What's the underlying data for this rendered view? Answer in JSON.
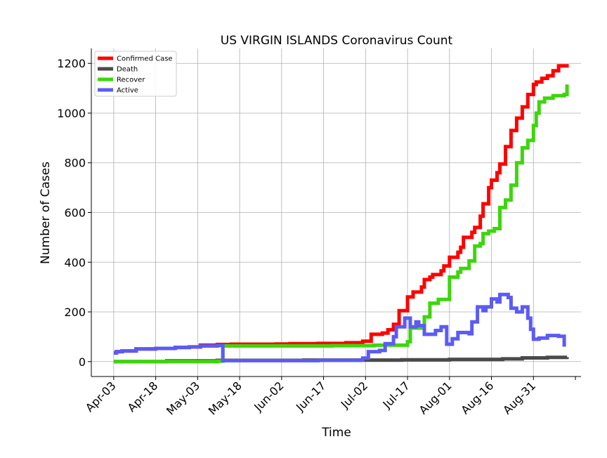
{
  "chart_data": {
    "type": "line",
    "title": "US VIRGIN ISLANDS Coronavirus Count",
    "xlabel": "Time",
    "ylabel": "Number of Cases",
    "x_ticks": [
      "Apr-03",
      "Apr-18",
      "May-03",
      "May-18",
      "Jun-02",
      "Jun-17",
      "Jul-02",
      "Jul-17",
      "Aug-01",
      "Aug-16",
      "Aug-31"
    ],
    "y_ticks": [
      0,
      200,
      400,
      600,
      800,
      1000,
      1200
    ],
    "ylim": [
      -60,
      1260
    ],
    "xlim": [
      "2020-03-26",
      "2020-09-17"
    ],
    "grid": true,
    "legend_position": "top-left",
    "series": [
      {
        "name": "Confirmed Case",
        "color": "#ff0000",
        "points": [
          [
            "2020-04-03",
            35
          ],
          [
            "2020-04-04",
            40
          ],
          [
            "2020-04-06",
            43
          ],
          [
            "2020-04-11",
            51
          ],
          [
            "2020-04-18",
            53
          ],
          [
            "2020-04-25",
            57
          ],
          [
            "2020-04-30",
            59
          ],
          [
            "2020-05-04",
            66
          ],
          [
            "2020-05-10",
            69
          ],
          [
            "2020-05-15",
            70
          ],
          [
            "2020-05-31",
            71
          ],
          [
            "2020-06-05",
            72
          ],
          [
            "2020-06-15",
            73
          ],
          [
            "2020-06-25",
            76
          ],
          [
            "2020-07-01",
            82
          ],
          [
            "2020-07-04",
            110
          ],
          [
            "2020-07-08",
            115
          ],
          [
            "2020-07-10",
            128
          ],
          [
            "2020-07-12",
            150
          ],
          [
            "2020-07-14",
            205
          ],
          [
            "2020-07-17",
            260
          ],
          [
            "2020-07-19",
            280
          ],
          [
            "2020-07-22",
            300
          ],
          [
            "2020-07-23",
            330
          ],
          [
            "2020-07-25",
            340
          ],
          [
            "2020-07-26",
            350
          ],
          [
            "2020-07-29",
            365
          ],
          [
            "2020-07-30",
            385
          ],
          [
            "2020-08-01",
            420
          ],
          [
            "2020-08-04",
            440
          ],
          [
            "2020-08-05",
            460
          ],
          [
            "2020-08-06",
            500
          ],
          [
            "2020-08-09",
            520
          ],
          [
            "2020-08-10",
            540
          ],
          [
            "2020-08-12",
            585
          ],
          [
            "2020-08-13",
            635
          ],
          [
            "2020-08-15",
            700
          ],
          [
            "2020-08-16",
            730
          ],
          [
            "2020-08-18",
            760
          ],
          [
            "2020-08-19",
            795
          ],
          [
            "2020-08-21",
            865
          ],
          [
            "2020-08-23",
            930
          ],
          [
            "2020-08-25",
            980
          ],
          [
            "2020-08-27",
            1025
          ],
          [
            "2020-08-29",
            1075
          ],
          [
            "2020-08-31",
            1115
          ],
          [
            "2020-09-01",
            1125
          ],
          [
            "2020-09-03",
            1140
          ],
          [
            "2020-09-05",
            1150
          ],
          [
            "2020-09-07",
            1170
          ],
          [
            "2020-09-09",
            1190
          ],
          [
            "2020-09-12",
            1197
          ]
        ]
      },
      {
        "name": "Death",
        "color": "#4a4a4a",
        "points": [
          [
            "2020-04-03",
            0
          ],
          [
            "2020-04-22",
            3
          ],
          [
            "2020-05-10",
            5
          ],
          [
            "2020-06-10",
            6
          ],
          [
            "2020-07-15",
            7
          ],
          [
            "2020-08-01",
            9
          ],
          [
            "2020-08-20",
            11
          ],
          [
            "2020-08-27",
            15
          ],
          [
            "2020-09-05",
            17
          ],
          [
            "2020-09-12",
            18
          ]
        ]
      },
      {
        "name": "Recover",
        "color": "#3dd60c",
        "points": [
          [
            "2020-04-03",
            0
          ],
          [
            "2020-05-10",
            2
          ],
          [
            "2020-05-12",
            63
          ],
          [
            "2020-06-20",
            64
          ],
          [
            "2020-07-05",
            66
          ],
          [
            "2020-07-17",
            80
          ],
          [
            "2020-07-18",
            135
          ],
          [
            "2020-07-22",
            140
          ],
          [
            "2020-07-23",
            180
          ],
          [
            "2020-07-25",
            235
          ],
          [
            "2020-07-28",
            250
          ],
          [
            "2020-08-01",
            340
          ],
          [
            "2020-08-04",
            360
          ],
          [
            "2020-08-05",
            375
          ],
          [
            "2020-08-08",
            405
          ],
          [
            "2020-08-10",
            465
          ],
          [
            "2020-08-12",
            475
          ],
          [
            "2020-08-13",
            515
          ],
          [
            "2020-08-15",
            525
          ],
          [
            "2020-08-17",
            535
          ],
          [
            "2020-08-19",
            620
          ],
          [
            "2020-08-21",
            650
          ],
          [
            "2020-08-23",
            710
          ],
          [
            "2020-08-25",
            800
          ],
          [
            "2020-08-27",
            860
          ],
          [
            "2020-08-29",
            890
          ],
          [
            "2020-08-31",
            950
          ],
          [
            "2020-09-01",
            1000
          ],
          [
            "2020-09-02",
            1045
          ],
          [
            "2020-09-04",
            1060
          ],
          [
            "2020-09-07",
            1070
          ],
          [
            "2020-09-11",
            1075
          ],
          [
            "2020-09-12",
            1115
          ]
        ]
      },
      {
        "name": "Active",
        "color": "#5b5bf4",
        "points": [
          [
            "2020-04-03",
            35
          ],
          [
            "2020-04-04",
            40
          ],
          [
            "2020-04-06",
            43
          ],
          [
            "2020-04-11",
            51
          ],
          [
            "2020-04-18",
            53
          ],
          [
            "2020-04-25",
            57
          ],
          [
            "2020-04-30",
            59
          ],
          [
            "2020-05-04",
            63
          ],
          [
            "2020-05-10",
            65
          ],
          [
            "2020-05-12",
            4
          ],
          [
            "2020-06-15",
            5
          ],
          [
            "2020-06-30",
            6
          ],
          [
            "2020-07-01",
            14
          ],
          [
            "2020-07-03",
            40
          ],
          [
            "2020-07-07",
            45
          ],
          [
            "2020-07-09",
            72
          ],
          [
            "2020-07-12",
            100
          ],
          [
            "2020-07-13",
            140
          ],
          [
            "2020-07-16",
            175
          ],
          [
            "2020-07-18",
            140
          ],
          [
            "2020-07-20",
            160
          ],
          [
            "2020-07-21",
            145
          ],
          [
            "2020-07-23",
            110
          ],
          [
            "2020-07-27",
            125
          ],
          [
            "2020-07-29",
            140
          ],
          [
            "2020-07-31",
            70
          ],
          [
            "2020-08-02",
            92
          ],
          [
            "2020-08-04",
            117
          ],
          [
            "2020-08-08",
            112
          ],
          [
            "2020-08-09",
            160
          ],
          [
            "2020-08-11",
            220
          ],
          [
            "2020-08-13",
            205
          ],
          [
            "2020-08-14",
            220
          ],
          [
            "2020-08-16",
            252
          ],
          [
            "2020-08-18",
            240
          ],
          [
            "2020-08-19",
            270
          ],
          [
            "2020-08-22",
            258
          ],
          [
            "2020-08-23",
            215
          ],
          [
            "2020-08-25",
            200
          ],
          [
            "2020-08-27",
            220
          ],
          [
            "2020-08-29",
            175
          ],
          [
            "2020-08-30",
            130
          ],
          [
            "2020-08-31",
            90
          ],
          [
            "2020-09-02",
            95
          ],
          [
            "2020-09-05",
            105
          ],
          [
            "2020-09-09",
            102
          ],
          [
            "2020-09-11",
            60
          ]
        ]
      }
    ]
  }
}
